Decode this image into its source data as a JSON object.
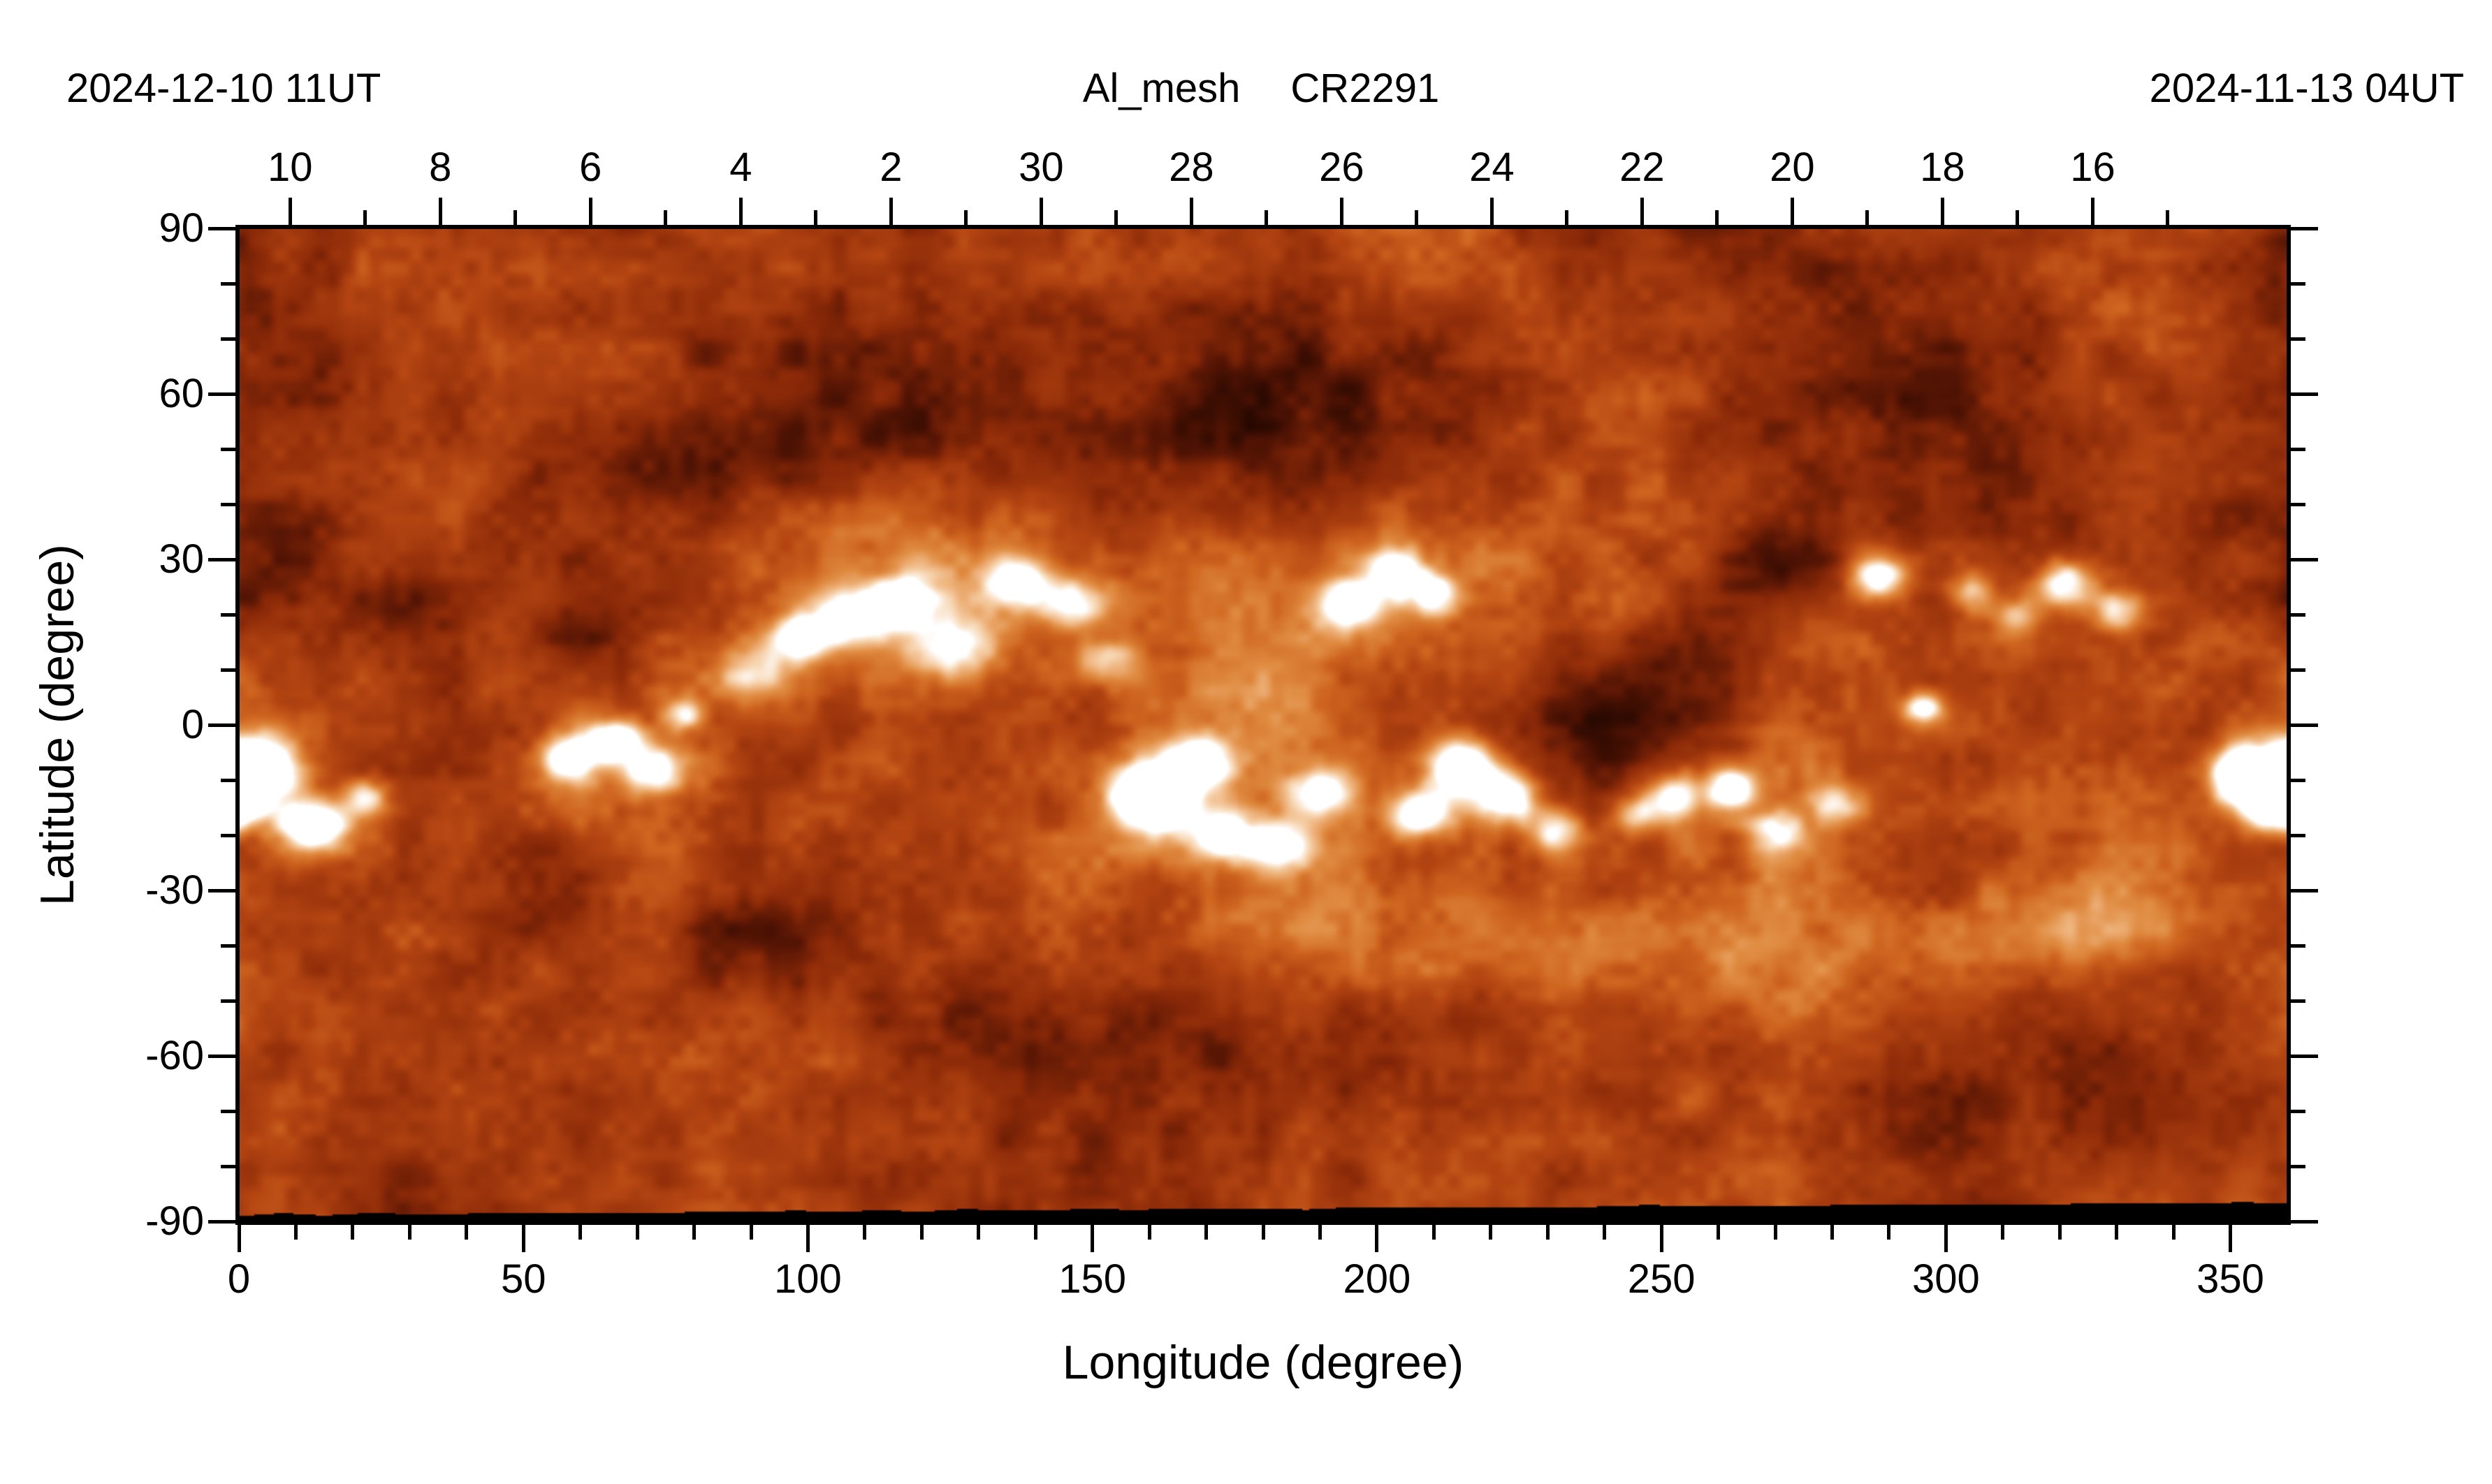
{
  "header": {
    "left_date": "2024-12-10  11UT",
    "title_filter": "Al_mesh",
    "title_rotation": "CR2291",
    "right_date": "2024-11-13  04UT"
  },
  "chart_data": {
    "type": "heatmap",
    "title": "Al_mesh CR2291",
    "date_left_edge": "2024-12-10 11UT",
    "date_right_edge": "2024-11-13 04UT",
    "colormap": "copper-orange solar intensity, black data gap at south pole",
    "x_axis": {
      "label": "Longitude (degree)",
      "range": [
        0,
        360
      ],
      "major_ticks": [
        0,
        50,
        100,
        150,
        200,
        250,
        300,
        350
      ],
      "minor_step": 10
    },
    "y_axis": {
      "label": "Latitude (degree)",
      "range": [
        -90,
        90
      ],
      "major_ticks": [
        90,
        60,
        30,
        0,
        -30,
        -60,
        -90
      ],
      "minor_step": 10
    },
    "top_axis": {
      "meaning": "observation day of month along the rotation",
      "tick_labels": [
        "10",
        "8",
        "6",
        "4",
        "2",
        "30",
        "28",
        "26",
        "24",
        "22",
        "20",
        "18",
        "16"
      ],
      "tick_longitudes": [
        9,
        35.4,
        61.8,
        88.2,
        114.6,
        141,
        167.4,
        193.8,
        220.2,
        246.6,
        273,
        299.4,
        325.8
      ],
      "minor_step_longitude": 13.2
    },
    "palette": [
      [
        0.0,
        "#1c0500"
      ],
      [
        0.16,
        "#561504"
      ],
      [
        0.3,
        "#8c2a08"
      ],
      [
        0.46,
        "#b44512"
      ],
      [
        0.58,
        "#cf6620"
      ],
      [
        0.7,
        "#e08c42"
      ],
      [
        0.8,
        "#eeb37c"
      ],
      [
        0.89,
        "#f7d7b4"
      ],
      [
        1.0,
        "#ffffff"
      ]
    ],
    "region_format": "[longitude_deg, latitude_deg, sigma_lon_deg, sigma_lat_deg, amplitude]",
    "bright_regions": [
      [
        3,
        -8,
        5,
        4,
        1.3
      ],
      [
        13,
        -18,
        4,
        3,
        1.0
      ],
      [
        22,
        -13,
        3,
        2.5,
        0.55
      ],
      [
        58,
        -6,
        3.5,
        3,
        0.8
      ],
      [
        66,
        -3,
        3,
        2.5,
        0.9
      ],
      [
        72,
        -8,
        4,
        3,
        0.6
      ],
      [
        78,
        2,
        2.5,
        2,
        0.5
      ],
      [
        90,
        10,
        5,
        4,
        0.45
      ],
      [
        99,
        16,
        4,
        3,
        0.6
      ],
      [
        108,
        20,
        5,
        3.5,
        0.65
      ],
      [
        117,
        23,
        4,
        3,
        0.6
      ],
      [
        126,
        14,
        5,
        4,
        0.5
      ],
      [
        137,
        26,
        4,
        3,
        0.65
      ],
      [
        146,
        22,
        4,
        3,
        0.5
      ],
      [
        152,
        12,
        4,
        3,
        0.45
      ],
      [
        160,
        -13,
        5,
        4,
        1.25
      ],
      [
        168,
        -7,
        4,
        3,
        0.9
      ],
      [
        173,
        -20,
        4,
        3,
        0.7
      ],
      [
        183,
        -22,
        4,
        3,
        0.65
      ],
      [
        190,
        -12,
        4,
        3,
        0.6
      ],
      [
        195,
        22,
        4,
        3,
        0.7
      ],
      [
        203,
        28,
        3.5,
        3,
        0.75
      ],
      [
        210,
        24,
        3,
        2.5,
        0.55
      ],
      [
        207,
        -16,
        4,
        3,
        0.7
      ],
      [
        215,
        -8,
        4,
        3.5,
        1.05
      ],
      [
        223,
        -13,
        3.5,
        3,
        0.8
      ],
      [
        231,
        -19,
        3.5,
        3,
        0.55
      ],
      [
        245,
        -16,
        3,
        2.5,
        0.5
      ],
      [
        252,
        -13,
        3.5,
        3,
        0.7
      ],
      [
        262,
        -11,
        3,
        2.5,
        0.75
      ],
      [
        270,
        -19,
        3.5,
        3,
        0.5
      ],
      [
        280,
        -14,
        3,
        2.5,
        0.45
      ],
      [
        288,
        27,
        3.5,
        3,
        0.75
      ],
      [
        296,
        3,
        2.5,
        2,
        0.65
      ],
      [
        304,
        24,
        3,
        2.5,
        0.5
      ],
      [
        312,
        20,
        3,
        2.5,
        0.4
      ],
      [
        321,
        26,
        3.5,
        3,
        0.7
      ],
      [
        330,
        21,
        3,
        2.5,
        0.5
      ],
      [
        352,
        -9,
        4,
        3.5,
        1.0
      ],
      [
        358,
        -15,
        4,
        3,
        0.85
      ]
    ],
    "dark_regions": [
      [
        8,
        28,
        8,
        7,
        0.2
      ],
      [
        30,
        22,
        10,
        8,
        0.22
      ],
      [
        52,
        -28,
        12,
        9,
        0.28
      ],
      [
        62,
        18,
        8,
        7,
        0.22
      ],
      [
        80,
        48,
        12,
        8,
        0.15
      ],
      [
        88,
        -38,
        10,
        8,
        0.18
      ],
      [
        140,
        -55,
        18,
        8,
        0.12
      ],
      [
        178,
        55,
        22,
        12,
        0.18
      ],
      [
        238,
        0,
        12,
        9,
        0.26
      ],
      [
        258,
        8,
        10,
        8,
        0.24
      ],
      [
        270,
        28,
        8,
        6,
        0.18
      ],
      [
        300,
        55,
        18,
        10,
        0.12
      ],
      [
        332,
        -3,
        8,
        6,
        0.18
      ],
      [
        20,
        60,
        18,
        10,
        0.12
      ],
      [
        115,
        55,
        15,
        9,
        0.12
      ]
    ],
    "diffuse_regions": [
      [
        225,
        -40,
        18,
        7,
        0.16
      ],
      [
        275,
        -42,
        22,
        8,
        0.2
      ],
      [
        318,
        -38,
        18,
        7,
        0.18
      ],
      [
        345,
        -35,
        12,
        6,
        0.14
      ],
      [
        115,
        28,
        15,
        8,
        0.1
      ],
      [
        160,
        25,
        18,
        8,
        0.1
      ],
      [
        200,
        -35,
        12,
        6,
        0.12
      ],
      [
        75,
        -15,
        10,
        8,
        0.1
      ],
      [
        120,
        8,
        25,
        12,
        0.08
      ],
      [
        170,
        -5,
        25,
        12,
        0.08
      ]
    ],
    "bottom_gap": {
      "lat_left": -88.8,
      "lat_right": -86.6
    }
  }
}
